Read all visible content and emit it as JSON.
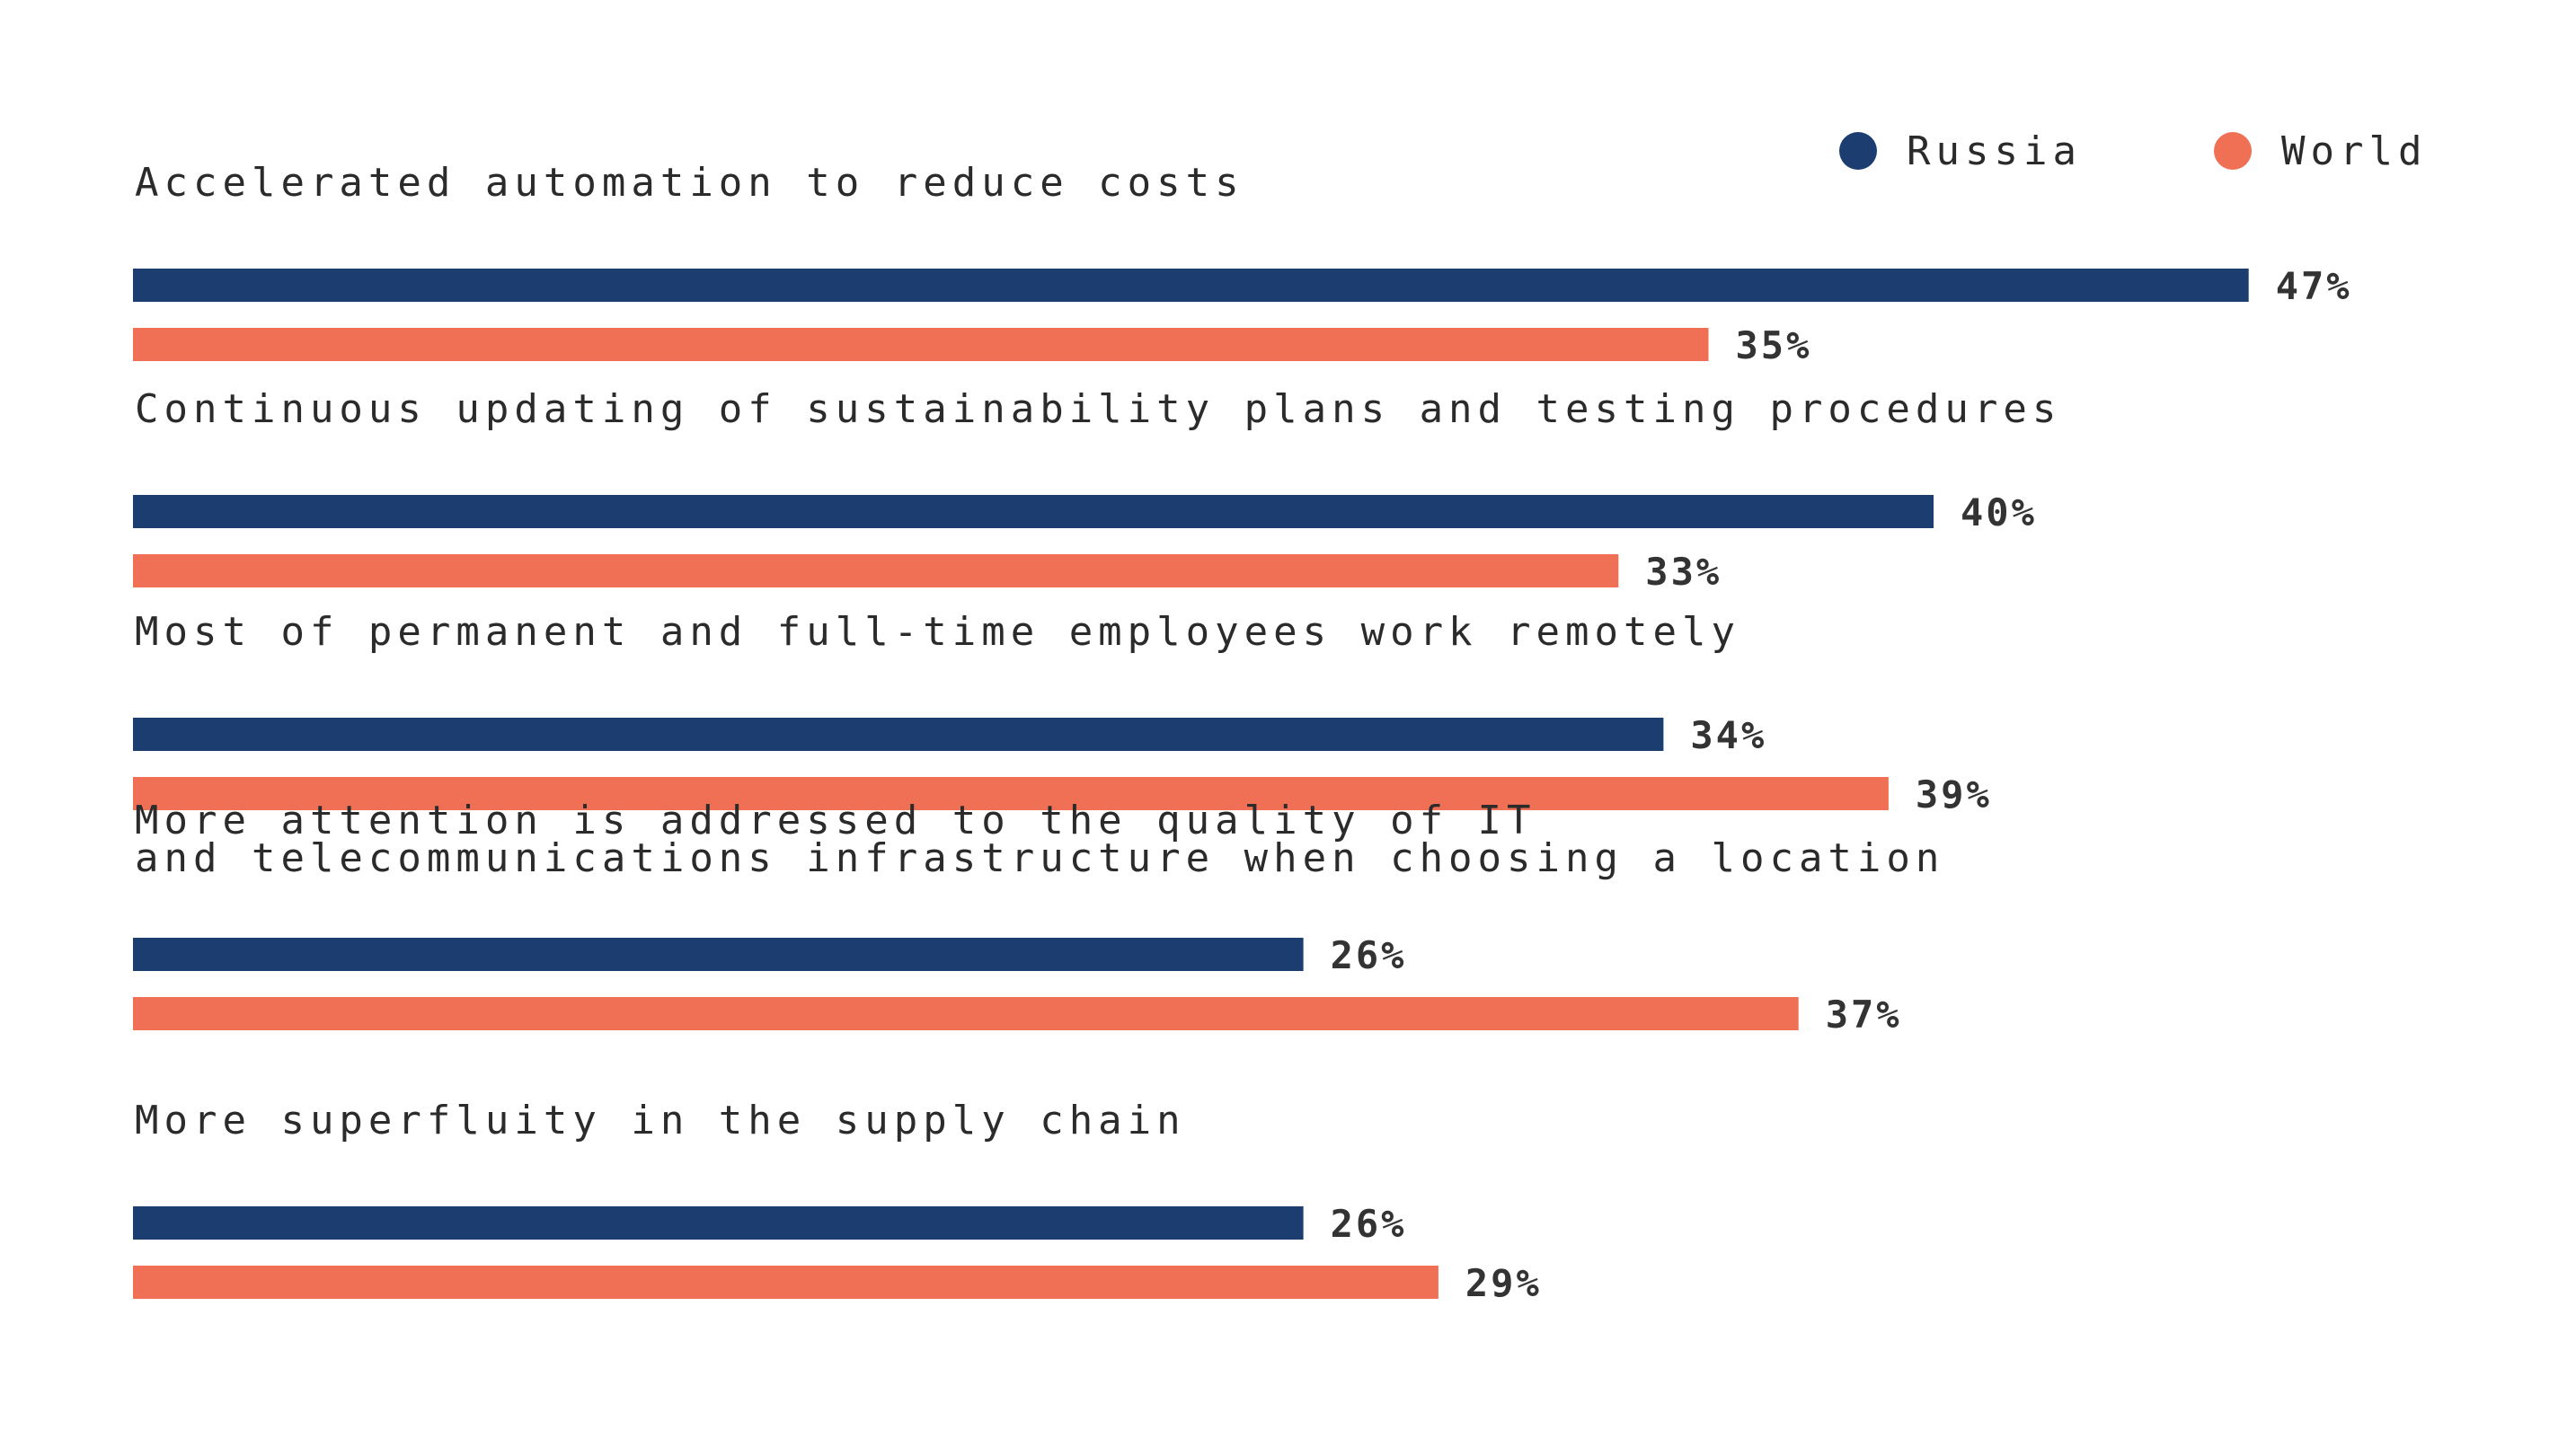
{
  "chart_data": {
    "type": "bar",
    "orientation": "horizontal",
    "categories": [
      [
        "Accelerated automation to reduce costs"
      ],
      [
        "Continuous updating of sustainability plans and testing procedures"
      ],
      [
        "Most of permanent and full-time employees work remotely"
      ],
      [
        "More attention is addressed to the quality of IT",
        "and telecommunications infrastructure when choosing a location"
      ],
      [
        "More superfluity in the supply chain"
      ]
    ],
    "series": [
      {
        "name": "Russia",
        "color": "#1b3d6f",
        "values": [
          47,
          40,
          34,
          26,
          26
        ],
        "labels": [
          "47%",
          "40%",
          "34%",
          "26%",
          "26%"
        ]
      },
      {
        "name": "World",
        "color": "#f07055",
        "values": [
          35,
          33,
          39,
          37,
          29
        ],
        "labels": [
          "35%",
          "33%",
          "39%",
          "37%",
          "29%"
        ]
      }
    ],
    "value_unit": "%",
    "legend_position": "top-right",
    "grid": false
  }
}
